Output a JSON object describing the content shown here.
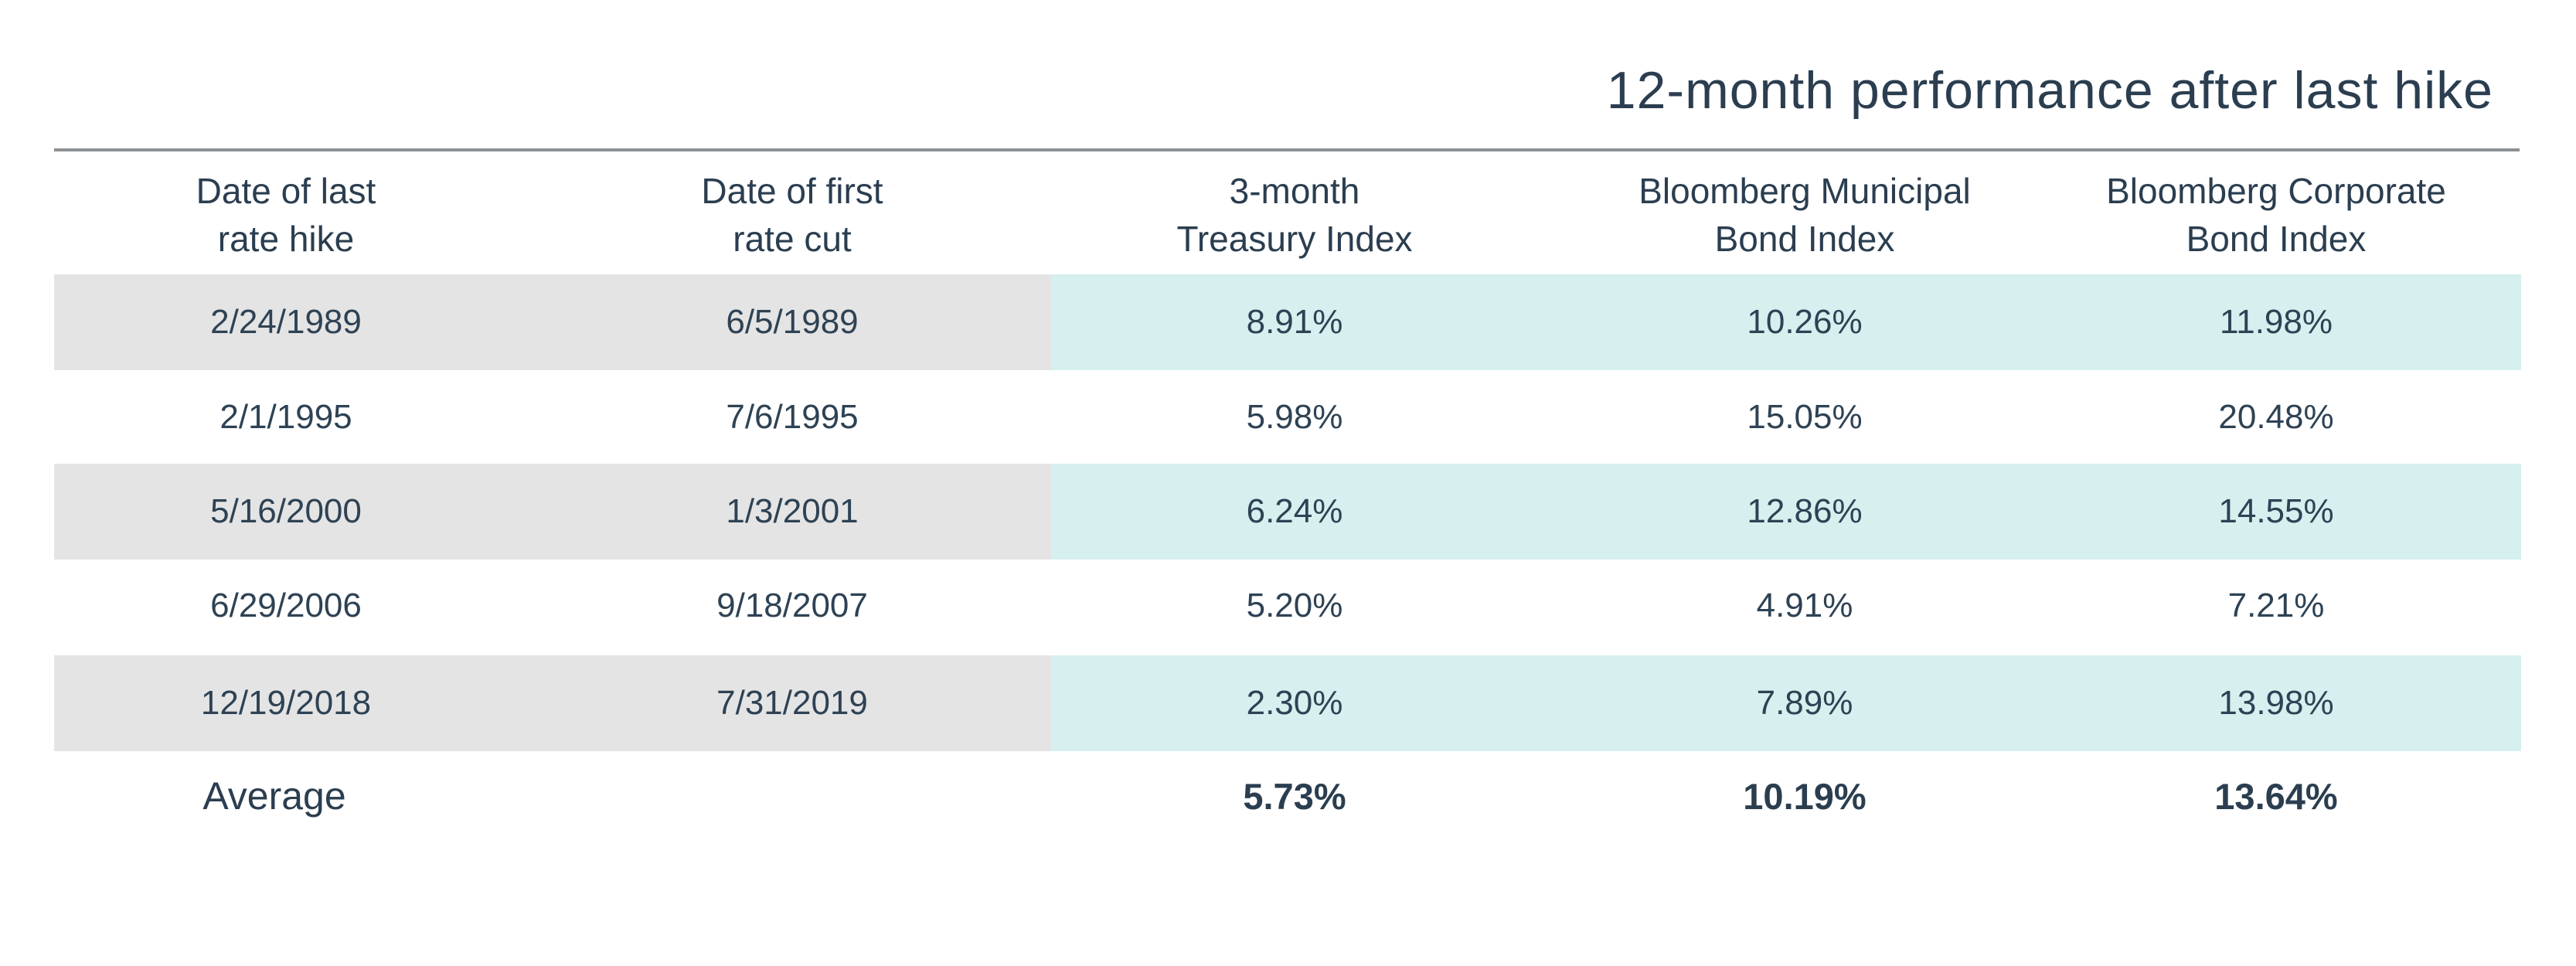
{
  "chart_data": {
    "type": "table",
    "super_title": "12-month performance after last hike",
    "columns": [
      [
        "Date of last",
        "rate hike"
      ],
      [
        "Date of first",
        "rate cut"
      ],
      [
        "3-month",
        "Treasury Index"
      ],
      [
        "Bloomberg Municipal",
        "Bond Index"
      ],
      [
        "Bloomberg Corporate",
        "Bond Index"
      ]
    ],
    "rows": [
      [
        "2/24/1989",
        "6/5/1989",
        "8.91%",
        "10.26%",
        "11.98%"
      ],
      [
        "2/1/1995",
        "7/6/1995",
        "5.98%",
        "15.05%",
        "20.48%"
      ],
      [
        "5/16/2000",
        "1/3/2001",
        "6.24%",
        "12.86%",
        "14.55%"
      ],
      [
        "6/29/2006",
        "9/18/2007",
        "5.20%",
        "4.91%",
        "7.21%"
      ],
      [
        "12/19/2018",
        "7/31/2019",
        "2.30%",
        "7.89%",
        "13.98%"
      ]
    ],
    "average": {
      "label": "Average",
      "values": [
        "",
        "",
        "5.73%",
        "10.19%",
        "13.64%"
      ]
    },
    "colors": {
      "text": "#2b3e50",
      "date_band": "#e4e4e4",
      "performance_band": "#d6efef",
      "rule": "#8c8f91"
    }
  }
}
